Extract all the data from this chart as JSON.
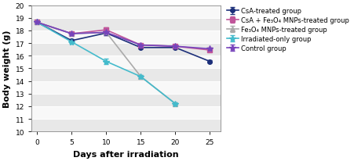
{
  "days": [
    0,
    5,
    10,
    15,
    20,
    25
  ],
  "groups": [
    {
      "name": "CsA-treated group",
      "values": [
        18.65,
        17.2,
        17.8,
        16.65,
        16.65,
        15.55
      ],
      "errors": [
        0.1,
        0.1,
        0.15,
        0.1,
        0.1,
        0.1
      ],
      "color": "#1c2f7a",
      "marker": "o",
      "markersize": 4,
      "linewidth": 1.2
    },
    {
      "name": "CsA + Fe₃O₄ MNPs-treated group",
      "values": [
        18.65,
        17.75,
        18.05,
        16.85,
        16.75,
        16.45
      ],
      "errors": [
        0.1,
        0.1,
        0.2,
        0.1,
        0.1,
        0.1
      ],
      "color": "#c0569a",
      "marker": "s",
      "markersize": 4,
      "linewidth": 1.2
    },
    {
      "name": "Fe₃O₄ MNPs-treated group",
      "values": [
        18.65,
        17.75,
        17.85,
        14.35,
        12.2,
        null
      ],
      "errors": [
        0.1,
        0.1,
        0.2,
        0.15,
        0.1,
        0.0
      ],
      "color": "#aaaaaa",
      "marker": "^",
      "markersize": 4,
      "linewidth": 1.2
    },
    {
      "name": "Irradiated-only group",
      "values": [
        18.65,
        17.1,
        15.55,
        14.35,
        12.2,
        null
      ],
      "errors": [
        0.1,
        0.1,
        0.2,
        0.15,
        0.1,
        0.0
      ],
      "color": "#44bbcc",
      "marker": "*",
      "markersize": 6,
      "linewidth": 1.2
    },
    {
      "name": "Control group",
      "values": [
        18.65,
        17.75,
        17.85,
        16.85,
        16.75,
        16.55
      ],
      "errors": [
        0.1,
        0.1,
        0.2,
        0.1,
        0.1,
        0.1
      ],
      "color": "#7744bb",
      "marker": "*",
      "markersize": 6,
      "linewidth": 1.2
    }
  ],
  "xlabel": "Days after irradiation",
  "ylabel": "Body weight (g)",
  "ylim": [
    10,
    20
  ],
  "xlim": [
    -0.8,
    26.5
  ],
  "yticks": [
    10,
    11,
    12,
    13,
    14,
    15,
    16,
    17,
    18,
    19,
    20
  ],
  "xticks": [
    0,
    5,
    10,
    15,
    20,
    25
  ],
  "band_colors": [
    "#e8e8e8",
    "#f8f8f8"
  ],
  "legend_fontsize": 6.0,
  "axis_label_fontsize": 8,
  "tick_fontsize": 6.5
}
